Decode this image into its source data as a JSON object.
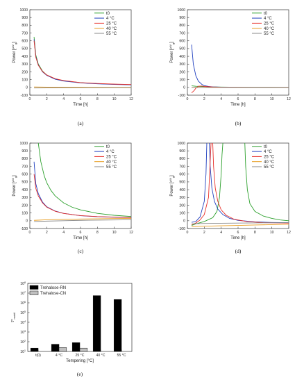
{
  "chart_data": [
    {
      "type": "line",
      "panel_label": "(a)",
      "xlabel": "Time [h]",
      "ylabel_base": "Power [",
      "ylabel_sup": "µW",
      "ylabel_sub": "g",
      "ylabel_end": "]",
      "xlim": [
        0,
        12
      ],
      "ylim": [
        -100,
        1000
      ],
      "xticks": [
        "0",
        "2",
        "4",
        "6",
        "8",
        "10",
        "12"
      ],
      "yticks": [
        "-100",
        "0",
        "100",
        "200",
        "300",
        "400",
        "500",
        "600",
        "700",
        "800",
        "900",
        "1000"
      ],
      "legend_position": "top-right",
      "series": [
        {
          "name": "t0",
          "color": "#2ca02c",
          "x": [
            0.5,
            0.7,
            1,
            1.5,
            2,
            3,
            4,
            6,
            8,
            10,
            12
          ],
          "y": [
            650,
            420,
            300,
            210,
            160,
            110,
            85,
            60,
            48,
            40,
            35
          ]
        },
        {
          "name": "4 °C",
          "color": "#1f3fbf",
          "x": [
            0.5,
            0.7,
            1,
            1.5,
            2,
            3,
            4,
            6,
            8,
            10,
            12
          ],
          "y": [
            620,
            400,
            290,
            200,
            155,
            105,
            82,
            58,
            46,
            38,
            33
          ]
        },
        {
          "name": "25 °C",
          "color": "#e8302a",
          "x": [
            0.5,
            0.7,
            1,
            1.5,
            2,
            3,
            4,
            6,
            8,
            10,
            12
          ],
          "y": [
            600,
            390,
            285,
            205,
            160,
            112,
            88,
            62,
            50,
            42,
            37
          ]
        },
        {
          "name": "40 °C",
          "color": "#e89b1c",
          "x": [
            0.5,
            2,
            4,
            6,
            8,
            10,
            12
          ],
          "y": [
            5,
            3,
            2,
            2,
            1,
            1,
            1
          ]
        },
        {
          "name": "55 °C",
          "color": "#8a8a8a",
          "x": [
            0.5,
            2,
            4,
            6,
            8,
            10,
            12
          ],
          "y": [
            -8,
            -6,
            -5,
            -4,
            -4,
            -3,
            -3
          ]
        }
      ]
    },
    {
      "type": "line",
      "panel_label": "(b)",
      "xlabel": "Time [h]",
      "ylabel_base": "Power [",
      "ylabel_sup": "µW",
      "ylabel_sub": "g",
      "ylabel_end": "]",
      "xlim": [
        0,
        12
      ],
      "ylim": [
        -100,
        1000
      ],
      "xticks": [
        "0",
        "2",
        "4",
        "6",
        "8",
        "10",
        "12"
      ],
      "yticks": [
        "-100",
        "0",
        "100",
        "200",
        "300",
        "400",
        "500",
        "600",
        "700",
        "800",
        "900",
        "1000"
      ],
      "legend_position": "top-right",
      "series": [
        {
          "name": "t0",
          "color": "#2ca02c",
          "x": [
            0.5,
            1,
            1.5,
            2,
            3,
            4,
            6,
            8,
            10,
            12
          ],
          "y": [
            20,
            15,
            12,
            10,
            6,
            4,
            2,
            1,
            1,
            0
          ]
        },
        {
          "name": "4 °C",
          "color": "#1f3fbf",
          "x": [
            0.5,
            0.7,
            1,
            1.3,
            1.7,
            2,
            2.5,
            3,
            4,
            6,
            8,
            10,
            12
          ],
          "y": [
            550,
            300,
            150,
            80,
            40,
            22,
            12,
            7,
            3,
            1,
            0,
            0,
            0
          ]
        },
        {
          "name": "25 °C",
          "color": "#e8302a",
          "x": [
            0.5,
            0.8,
            1,
            1.3,
            1.7,
            2,
            3,
            4,
            6,
            8,
            12
          ],
          "y": [
            -70,
            -40,
            -10,
            15,
            18,
            12,
            5,
            2,
            1,
            0,
            0
          ]
        },
        {
          "name": "40 °C",
          "color": "#e89b1c",
          "x": [
            0.5,
            2,
            4,
            8,
            12
          ],
          "y": [
            0,
            0,
            0,
            0,
            0
          ]
        },
        {
          "name": "55 °C",
          "color": "#8a8a8a",
          "x": [
            0.5,
            2,
            4,
            8,
            12
          ],
          "y": [
            -2,
            -2,
            -1,
            -1,
            -1
          ]
        }
      ]
    },
    {
      "type": "line",
      "panel_label": "(c)",
      "xlabel": "Time [h]",
      "ylabel_base": "Power [",
      "ylabel_sup": "µW",
      "ylabel_sub": "g",
      "ylabel_end": "]",
      "xlim": [
        0,
        12
      ],
      "ylim": [
        -100,
        1000
      ],
      "xticks": [
        "0",
        "2",
        "4",
        "6",
        "8",
        "10",
        "12"
      ],
      "yticks": [
        "-100",
        "0",
        "100",
        "200",
        "300",
        "400",
        "500",
        "600",
        "700",
        "800",
        "900",
        "1000"
      ],
      "legend_position": "top-right",
      "series": [
        {
          "name": "t0",
          "color": "#2ca02c",
          "x": [
            1,
            1.3,
            1.7,
            2,
            2.5,
            3,
            4,
            5,
            6,
            8,
            10,
            12
          ],
          "y": [
            1000,
            760,
            580,
            490,
            390,
            320,
            230,
            175,
            140,
            95,
            70,
            55
          ]
        },
        {
          "name": "4 °C",
          "color": "#1f3fbf",
          "x": [
            0.5,
            0.7,
            1,
            1.5,
            2,
            3,
            4,
            6,
            8,
            10,
            12
          ],
          "y": [
            760,
            480,
            350,
            240,
            180,
            125,
            95,
            65,
            52,
            45,
            40
          ]
        },
        {
          "name": "25 °C",
          "color": "#e8302a",
          "x": [
            0.5,
            0.7,
            1,
            1.5,
            2,
            3,
            4,
            6,
            8,
            10,
            12
          ],
          "y": [
            600,
            420,
            320,
            230,
            175,
            122,
            94,
            66,
            54,
            47,
            42
          ]
        },
        {
          "name": "40 °C",
          "color": "#e89b1c",
          "x": [
            0.5,
            2,
            4,
            6,
            8,
            10,
            12
          ],
          "y": [
            5,
            12,
            18,
            22,
            25,
            28,
            30
          ]
        },
        {
          "name": "55 °C",
          "color": "#8a8a8a",
          "x": [
            0.5,
            2,
            4,
            6,
            8,
            10,
            12
          ],
          "y": [
            -10,
            -5,
            0,
            5,
            8,
            10,
            12
          ]
        }
      ]
    },
    {
      "type": "line",
      "panel_label": "(d)",
      "xlabel": "Time [h]",
      "ylabel_base": "Power [",
      "ylabel_sup": "µW",
      "ylabel_sub": "g",
      "ylabel_end": "]",
      "xlim": [
        0,
        12
      ],
      "ylim": [
        -100,
        1000
      ],
      "xticks": [
        "0",
        "2",
        "4",
        "6",
        "8",
        "10",
        "12"
      ],
      "yticks": [
        "-100",
        "0",
        "100",
        "200",
        "300",
        "400",
        "500",
        "600",
        "700",
        "800",
        "900",
        "1000"
      ],
      "legend_position": "top-right",
      "series": [
        {
          "name": "t0",
          "color": "#2ca02c",
          "x": [
            0.5,
            1,
            2,
            3,
            3.5,
            3.8,
            4.0,
            4.1,
            4.2
          ],
          "y": [
            -60,
            -40,
            -10,
            40,
            120,
            300,
            600,
            850,
            1000
          ]
        },
        {
          "name": "t0",
          "color": "#2ca02c",
          "x": [
            6.8,
            6.9,
            7.1,
            7.4,
            8,
            9,
            10,
            11,
            12
          ],
          "y": [
            1000,
            700,
            400,
            220,
            120,
            60,
            30,
            10,
            0
          ]
        },
        {
          "name": "4 °C",
          "color": "#1f3fbf",
          "x": [
            0.5,
            1,
            1.5,
            2,
            2.2,
            2.3
          ],
          "y": [
            -20,
            -10,
            50,
            250,
            600,
            1000
          ]
        },
        {
          "name": "4 °C",
          "color": "#1f3fbf",
          "x": [
            2.6,
            2.7,
            2.9,
            3.2,
            3.6,
            4.2,
            5,
            6,
            8,
            10,
            12
          ],
          "y": [
            1000,
            700,
            420,
            250,
            150,
            80,
            30,
            5,
            -15,
            -22,
            -25
          ]
        },
        {
          "name": "25 °C",
          "color": "#e8302a",
          "x": [
            0.5,
            1,
            1.5,
            2,
            2.5,
            2.8
          ],
          "y": [
            -50,
            -30,
            10,
            80,
            300,
            1000
          ]
        },
        {
          "name": "25 °C",
          "color": "#e8302a",
          "x": [
            3.0,
            3.1,
            3.3,
            3.6,
            4.0,
            4.6,
            5.5,
            7,
            9,
            12
          ],
          "y": [
            1000,
            700,
            420,
            250,
            140,
            70,
            20,
            -10,
            -25,
            -30
          ]
        },
        {
          "name": "40 °C",
          "color": "#e89b1c",
          "x": [
            0.5,
            2,
            4,
            6,
            8,
            10,
            12
          ],
          "y": [
            -75,
            -70,
            -65,
            -60,
            -55,
            -50,
            -45
          ]
        },
        {
          "name": "55 °C",
          "color": "#8a8a8a",
          "x": [
            0.5,
            2,
            4,
            6,
            8,
            10,
            12
          ],
          "y": [
            -40,
            -35,
            -32,
            -30,
            -28,
            -26,
            -25
          ]
        }
      ]
    },
    {
      "type": "bar",
      "panel_label": "(e)",
      "xlabel": "Tempering [°C]",
      "ylabel_base": "τ",
      "ylabel_sup": "α",
      "ylabel_sub": "mobil",
      "ylabel_end": "",
      "ylog": true,
      "ylim_exp": [
        1,
        8
      ],
      "categories": [
        "t(0)",
        "4 °C",
        "25 °C",
        "40 °C",
        "55 °C"
      ],
      "legend_position": "top-left",
      "series": [
        {
          "name": "Trehalose-RN",
          "color": "#000000",
          "values": [
            22,
            55,
            80,
            5500000,
            2200000
          ]
        },
        {
          "name": "Trehalose-CN",
          "color": "#c0c0c0",
          "values": [
            10,
            25,
            22,
            null,
            null
          ]
        }
      ]
    }
  ]
}
